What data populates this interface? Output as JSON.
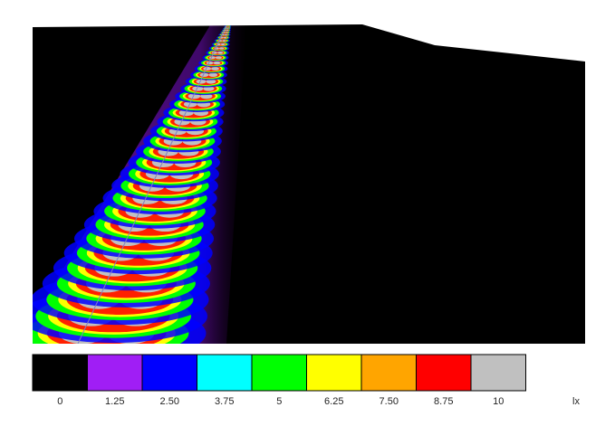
{
  "legend": {
    "unit": "lx",
    "steps": [
      {
        "label": "0",
        "color": "#000000"
      },
      {
        "label": "1.25",
        "color": "#a01ef5"
      },
      {
        "label": "2.50",
        "color": "#0000ff"
      },
      {
        "label": "3.75",
        "color": "#00ffff"
      },
      {
        "label": "5",
        "color": "#00ff00"
      },
      {
        "label": "6.25",
        "color": "#ffff00"
      },
      {
        "label": "7.50",
        "color": "#ffa500"
      },
      {
        "label": "8.75",
        "color": "#ff0000"
      },
      {
        "label": "10",
        "color": "#c0c0c0"
      }
    ]
  }
}
